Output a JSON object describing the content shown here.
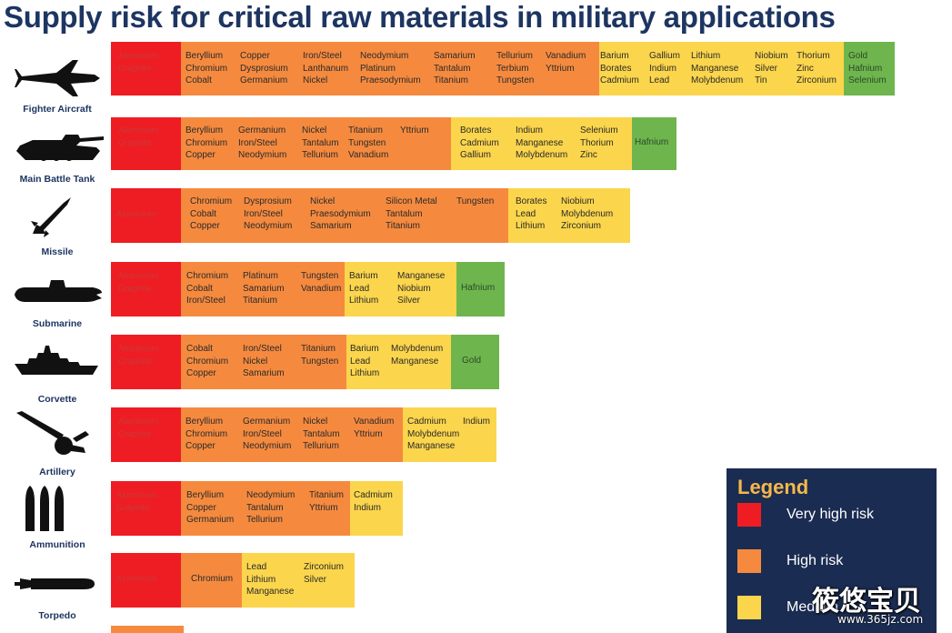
{
  "title": "Supply risk for critical raw materials in military applications",
  "colors": {
    "very_high": "#ee1d23",
    "high": "#f58a3f",
    "medium": "#fbd54c",
    "low": "#6fb54d",
    "navy": "#1d3561"
  },
  "chart_data": {
    "type": "table",
    "rows": [
      {
        "label": "Fighter Aircraft",
        "icon": "fighter-aircraft-icon",
        "segments": [
          {
            "risk": "very_high",
            "columns": [
              [
                "Aluminium",
                "Graphite"
              ]
            ]
          },
          {
            "risk": "high",
            "columns": [
              [
                "Beryllium",
                "Chromium",
                "Cobalt"
              ],
              [
                "Copper",
                "Dysprosium",
                "Germanium"
              ],
              [
                "Iron/Steel",
                "Lanthanum",
                "Nickel"
              ],
              [
                "Neodymium",
                "Platinum",
                "Praesodymium"
              ],
              [
                "Samarium",
                "Tantalum",
                "Titanium"
              ],
              [
                "Tellurium",
                "Terbium",
                "Tungsten"
              ],
              [
                "Vanadium",
                "Yttrium"
              ]
            ]
          },
          {
            "risk": "medium",
            "columns": [
              [
                "Barium",
                "Borates",
                "Cadmium"
              ],
              [
                "Gallium",
                "Indium",
                "Lead"
              ],
              [
                "Lithium",
                "Manganese",
                "Molybdenum"
              ],
              [
                "Niobium",
                "Silver",
                "Tin"
              ],
              [
                "Thorium",
                "Zinc",
                "Zirconium"
              ]
            ]
          },
          {
            "risk": "low",
            "columns": [
              [
                "Gold",
                "Hafnium",
                "Selenium"
              ]
            ]
          }
        ]
      },
      {
        "label": "Main Battle Tank",
        "icon": "main-battle-tank-icon",
        "segments": [
          {
            "risk": "very_high",
            "columns": [
              [
                "Aluminium",
                "Graphite"
              ]
            ]
          },
          {
            "risk": "high",
            "columns": [
              [
                "Beryllium",
                "Chromium",
                "Copper"
              ],
              [
                "Germanium",
                "Iron/Steel",
                "Neodymium"
              ],
              [
                "Nickel",
                "Tantalum",
                "Tellurium"
              ],
              [
                "Titanium",
                "Tungsten",
                "Vanadium"
              ],
              [
                "Yttrium"
              ]
            ]
          },
          {
            "risk": "medium",
            "columns": [
              [
                "Borates",
                "Cadmium",
                "Gallium"
              ],
              [
                "Indium",
                "Manganese",
                "Molybdenum"
              ],
              [
                "Selenium",
                "Thorium",
                "Zinc"
              ]
            ]
          },
          {
            "risk": "low",
            "columns": [
              [
                "Hafnium"
              ]
            ]
          }
        ]
      },
      {
        "label": "Missile",
        "icon": "missile-icon",
        "segments": [
          {
            "risk": "very_high",
            "columns": [
              [
                "Aluminium"
              ]
            ]
          },
          {
            "risk": "high",
            "columns": [
              [
                "Chromium",
                "Cobalt",
                "Copper"
              ],
              [
                "Dysprosium",
                "Iron/Steel",
                "Neodymium"
              ],
              [
                "Nickel",
                "Praesodymium",
                "Samarium"
              ],
              [
                "Silicon Metal",
                "Tantalum",
                "Titanium"
              ],
              [
                "Tungsten"
              ]
            ]
          },
          {
            "risk": "medium",
            "columns": [
              [
                "Borates",
                "Lead",
                "Lithium"
              ],
              [
                "Niobium",
                "Molybdenum",
                "Zirconium"
              ]
            ]
          }
        ]
      },
      {
        "label": "Submarine",
        "icon": "submarine-icon",
        "segments": [
          {
            "risk": "very_high",
            "columns": [
              [
                "Aluminium",
                "Graphite"
              ]
            ]
          },
          {
            "risk": "high",
            "columns": [
              [
                "Chromium",
                "Cobalt",
                "Iron/Steel"
              ],
              [
                "Platinum",
                "Samarium",
                "Titanium"
              ],
              [
                "Tungsten",
                "Vanadium"
              ]
            ]
          },
          {
            "risk": "medium",
            "columns": [
              [
                "Barium",
                "Lead",
                "Lithium"
              ],
              [
                "Manganese",
                "Niobium",
                "Silver"
              ]
            ]
          },
          {
            "risk": "low",
            "columns": [
              [
                "Hafnium"
              ]
            ]
          }
        ]
      },
      {
        "label": "Corvette",
        "icon": "corvette-icon",
        "segments": [
          {
            "risk": "very_high",
            "columns": [
              [
                "Aluminium",
                "Graphite"
              ]
            ]
          },
          {
            "risk": "high",
            "columns": [
              [
                "Cobalt",
                "Chromium",
                "Copper"
              ],
              [
                "Iron/Steel",
                "Nickel",
                "Samarium"
              ],
              [
                "Titanium",
                "Tungsten"
              ]
            ]
          },
          {
            "risk": "medium",
            "columns": [
              [
                "Barium",
                "Lead",
                "Lithium"
              ],
              [
                "Molybdenum",
                "Manganese"
              ]
            ]
          },
          {
            "risk": "low",
            "columns": [
              [
                "Gold"
              ]
            ]
          }
        ]
      },
      {
        "label": "Artillery",
        "icon": "artillery-icon",
        "segments": [
          {
            "risk": "very_high",
            "columns": [
              [
                "Aluminium",
                "Graphite"
              ]
            ]
          },
          {
            "risk": "high",
            "columns": [
              [
                "Beryllium",
                "Chromium",
                "Copper"
              ],
              [
                "Germanium",
                "Iron/Steel",
                "Neodymium"
              ],
              [
                "Nickel",
                "Tantalum",
                "Tellurium"
              ],
              [
                "Vanadium",
                "Yttrium"
              ]
            ]
          },
          {
            "risk": "medium",
            "columns": [
              [
                "Cadmium",
                "Molybdenum",
                "Manganese"
              ],
              [
                "Indium"
              ]
            ]
          }
        ]
      },
      {
        "label": "Ammunition",
        "icon": "ammunition-icon",
        "segments": [
          {
            "risk": "very_high",
            "columns": [
              [
                "Aluminium",
                "Graphite"
              ]
            ]
          },
          {
            "risk": "high",
            "columns": [
              [
                "Beryllium",
                "Copper",
                "Germanium"
              ],
              [
                "Neodymium",
                "Tantalum",
                "Tellurium"
              ],
              [
                "Titanium",
                "Yttrium"
              ]
            ]
          },
          {
            "risk": "medium",
            "columns": [
              [
                "Cadmium",
                "Indium"
              ]
            ]
          }
        ]
      },
      {
        "label": "Torpedo",
        "icon": "torpedo-icon",
        "segments": [
          {
            "risk": "very_high",
            "columns": [
              [
                "Aluminium"
              ]
            ]
          },
          {
            "risk": "high",
            "columns": [
              [
                "Chromium"
              ]
            ]
          },
          {
            "risk": "medium",
            "columns": [
              [
                "Lead",
                "Lithium",
                "Manganese"
              ],
              [
                "Zirconium",
                "Silver"
              ]
            ]
          }
        ]
      }
    ]
  },
  "legend": {
    "title": "Legend",
    "items": [
      {
        "label": "Very high risk",
        "risk": "very_high"
      },
      {
        "label": "High risk",
        "risk": "high"
      },
      {
        "label": "Medium",
        "risk": "medium"
      }
    ]
  },
  "watermark": {
    "text": "筱悠宝贝",
    "url": "www.365jz.com"
  }
}
